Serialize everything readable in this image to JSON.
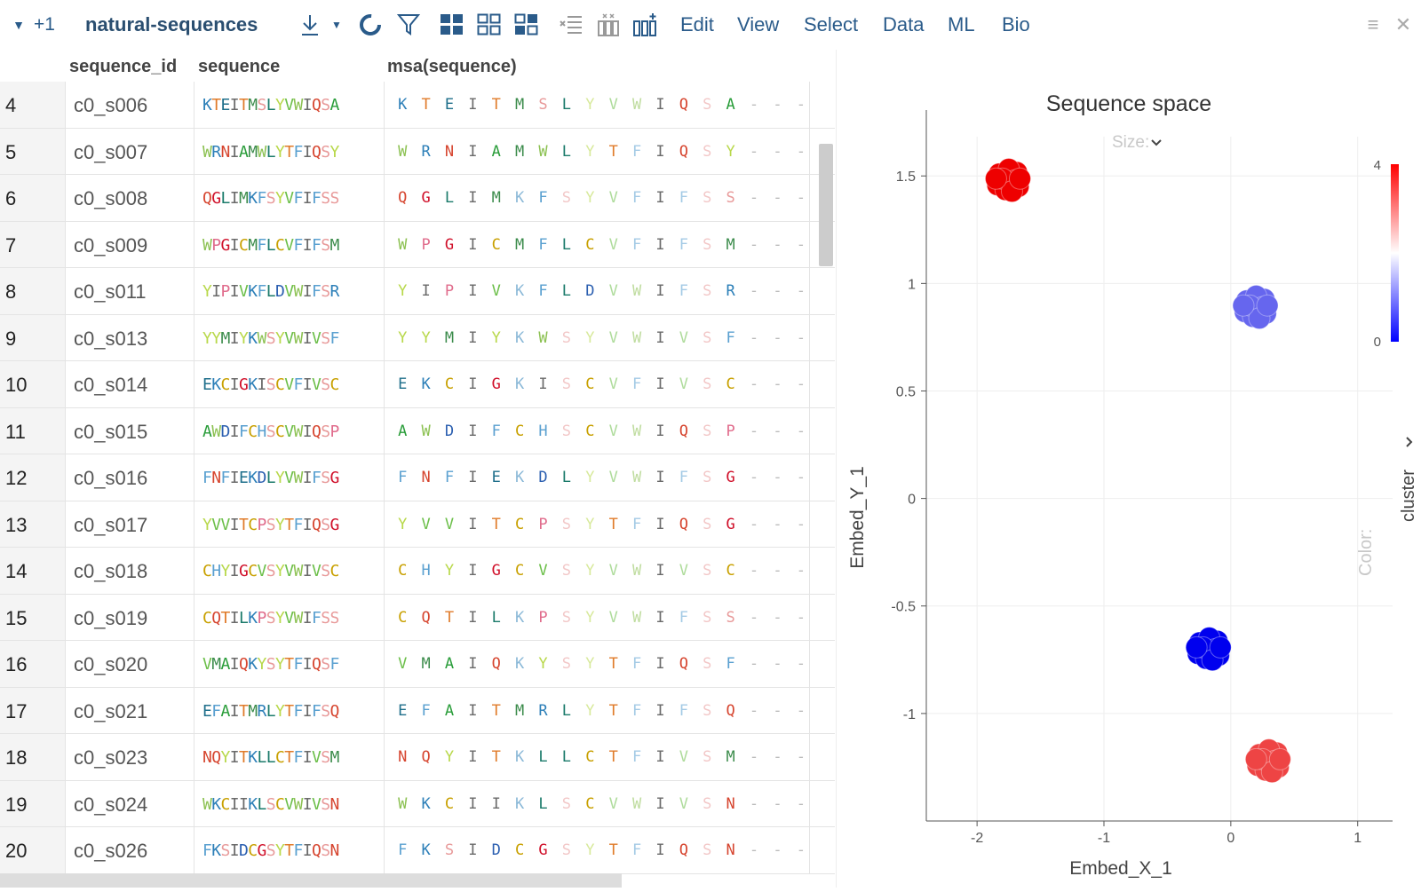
{
  "toolbar": {
    "view_count": "+1",
    "table_name": "natural-sequences",
    "menus": [
      "Edit",
      "View",
      "Select",
      "Data",
      "ML",
      "Bio"
    ]
  },
  "grid": {
    "columns": [
      "sequence_id",
      "sequence",
      "msa(sequence)"
    ],
    "rows": [
      {
        "n": "4",
        "id": "c0_s006",
        "seq": "KTEITMSLYVWIQSA",
        "msa": "KTEITMSLYVWIQSA"
      },
      {
        "n": "5",
        "id": "c0_s007",
        "seq": "WRNIAMWLYTFIQSY",
        "msa": "WRNIAMWLYTFIQSY"
      },
      {
        "n": "6",
        "id": "c0_s008",
        "seq": "QGLIMKFSYVFIFSS",
        "msa": "QGLIMKFSYVFIFSS"
      },
      {
        "n": "7",
        "id": "c0_s009",
        "seq": "WPGICMFLCVFIFSM",
        "msa": "WPGICMFLCVFIFSM"
      },
      {
        "n": "8",
        "id": "c0_s011",
        "seq": "YIPIVKFLDVWIFSR",
        "msa": "YIPIVKFLDVWIFSR"
      },
      {
        "n": "9",
        "id": "c0_s013",
        "seq": "YYMIYKWSYVWIVSF",
        "msa": "YYMIYKWSYVWIVSF"
      },
      {
        "n": "10",
        "id": "c0_s014",
        "seq": "EKCIGKISCVFIVSC",
        "msa": "EKCIGKISCVFIVSC"
      },
      {
        "n": "11",
        "id": "c0_s015",
        "seq": "AWDIFCHSCVWIQSP",
        "msa": "AWDIFCHSCVWIQSP"
      },
      {
        "n": "12",
        "id": "c0_s016",
        "seq": "FNFIEKDLYVWIFSG",
        "msa": "FNFIEKDLYVWIFSG"
      },
      {
        "n": "13",
        "id": "c0_s017",
        "seq": "YVVITCPSYTFIQSG",
        "msa": "YVVITCPSYTFIQSG"
      },
      {
        "n": "14",
        "id": "c0_s018",
        "seq": "CHYIGCVSYVWIVSC",
        "msa": "CHYIGCVSYVWIVSC"
      },
      {
        "n": "15",
        "id": "c0_s019",
        "seq": "CQTILKPSYVWIFSS",
        "msa": "CQTILKPSYVWIFSS"
      },
      {
        "n": "16",
        "id": "c0_s020",
        "seq": "VMAIQKYSYTFIQSF",
        "msa": "VMAIQKYSYTFIQSF"
      },
      {
        "n": "17",
        "id": "c0_s021",
        "seq": "EFAITMRLYTFIFSQ",
        "msa": "EFAITMRLYTFIFSQ"
      },
      {
        "n": "18",
        "id": "c0_s023",
        "seq": "NQYITKLLCTFIVSM",
        "msa": "NQYITKLLCTFIVSM"
      },
      {
        "n": "19",
        "id": "c0_s024",
        "seq": "WKCIIKLSCVWIVSN",
        "msa": "WKCIIKLSCVWIVSN"
      },
      {
        "n": "20",
        "id": "c0_s026",
        "seq": "FKSIDCGSYTFIQSN",
        "msa": "FKSIDCGSYTFIQSN"
      }
    ],
    "gap": "-"
  },
  "aa_colors": {
    "K": "#2c7fb8",
    "R": "#2c7fb8",
    "H": "#5aa0d0",
    "E": "#1f6f8b",
    "D": "#2b5fb0",
    "T": "#e07b2a",
    "S": "#e89a9a",
    "Q": "#d6452f",
    "N": "#d6452f",
    "A": "#2a9d3a",
    "I": "#6a6a6a",
    "L": "#1a7a6a",
    "M": "#3c8c4c",
    "V": "#6cbf4a",
    "W": "#8cc152",
    "F": "#5aa0d0",
    "Y": "#b8d84a",
    "C": "#c8a000",
    "G": "#d0102a",
    "P": "#e06c8c"
  },
  "scatter": {
    "title": "Sequence space",
    "size_label": "Size:",
    "color_label": "Color:",
    "color_column": "cluster",
    "legend_max": "4",
    "legend_min": "0"
  },
  "chart_data": {
    "type": "scatter",
    "title": "Sequence space",
    "xlabel": "Embed_X_1",
    "ylabel": "Embed_Y_1",
    "xlim": [
      -2.4,
      1.1
    ],
    "ylim": [
      -1.5,
      1.6
    ],
    "x_ticks": [
      -2,
      -1,
      0,
      1
    ],
    "y_ticks": [
      -1,
      -0.5,
      0,
      0.5,
      1,
      1.5
    ],
    "color_scale": {
      "min": 0,
      "max": 4,
      "low": "#0000ff",
      "mid": "#ffffff",
      "high": "#ff0000"
    },
    "clusters": [
      {
        "x": -1.75,
        "y": 1.48,
        "value": 4,
        "color": "#ee0000"
      },
      {
        "x": 0.2,
        "y": 0.89,
        "value": 1,
        "color": "#6666ee"
      },
      {
        "x": -0.17,
        "y": -0.7,
        "value": 0,
        "color": "#0000ee"
      },
      {
        "x": 0.3,
        "y": -1.22,
        "value": 3,
        "color": "#ee4444"
      }
    ],
    "grid": true
  }
}
